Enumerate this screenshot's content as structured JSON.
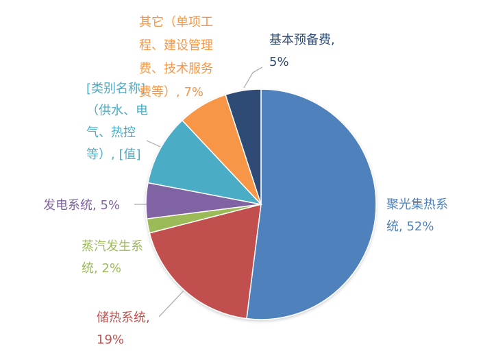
{
  "chart_data": {
    "type": "pie",
    "title": "",
    "slices": [
      {
        "name": "聚光集热系统",
        "value": 52,
        "display": "52%",
        "color": "#4F81BD",
        "label_lines": [
          "聚光集热系",
          "统, 52%"
        ]
      },
      {
        "name": "储热系统",
        "value": 19,
        "display": "19%",
        "color": "#C0504D",
        "label_lines": [
          "储热系统,",
          "19%"
        ]
      },
      {
        "name": "蒸汽发生系统",
        "value": 2,
        "display": "2%",
        "color": "#9BBB59",
        "label_lines": [
          "蒸汽发生系",
          "统, 2%"
        ]
      },
      {
        "name": "发电系统",
        "value": 5,
        "display": "5%",
        "color": "#8064A2",
        "label_lines": [
          "发电系统, 5%"
        ]
      },
      {
        "name": "[类别名称]（供水、电气、热控等）",
        "value": 10,
        "display": "[值]",
        "color": "#4BACC6",
        "label_lines": [
          "[类别名称]",
          "（供水、电",
          "气、热控",
          "等）, [值]"
        ]
      },
      {
        "name": "其它（单项工程、建设管理费、技术服务费等）",
        "value": 7,
        "display": "7%",
        "color": "#F79646",
        "label_lines": [
          "其它（单项工",
          "程、建设管理",
          "费、技术服务",
          "费等）, 7%"
        ]
      },
      {
        "name": "基本预备费",
        "value": 5,
        "display": "5%",
        "color": "#2E4B75",
        "label_lines": [
          "基本预备费,",
          "5%"
        ]
      }
    ],
    "legend": "none",
    "leader_line_color": "#A6A6A6"
  }
}
